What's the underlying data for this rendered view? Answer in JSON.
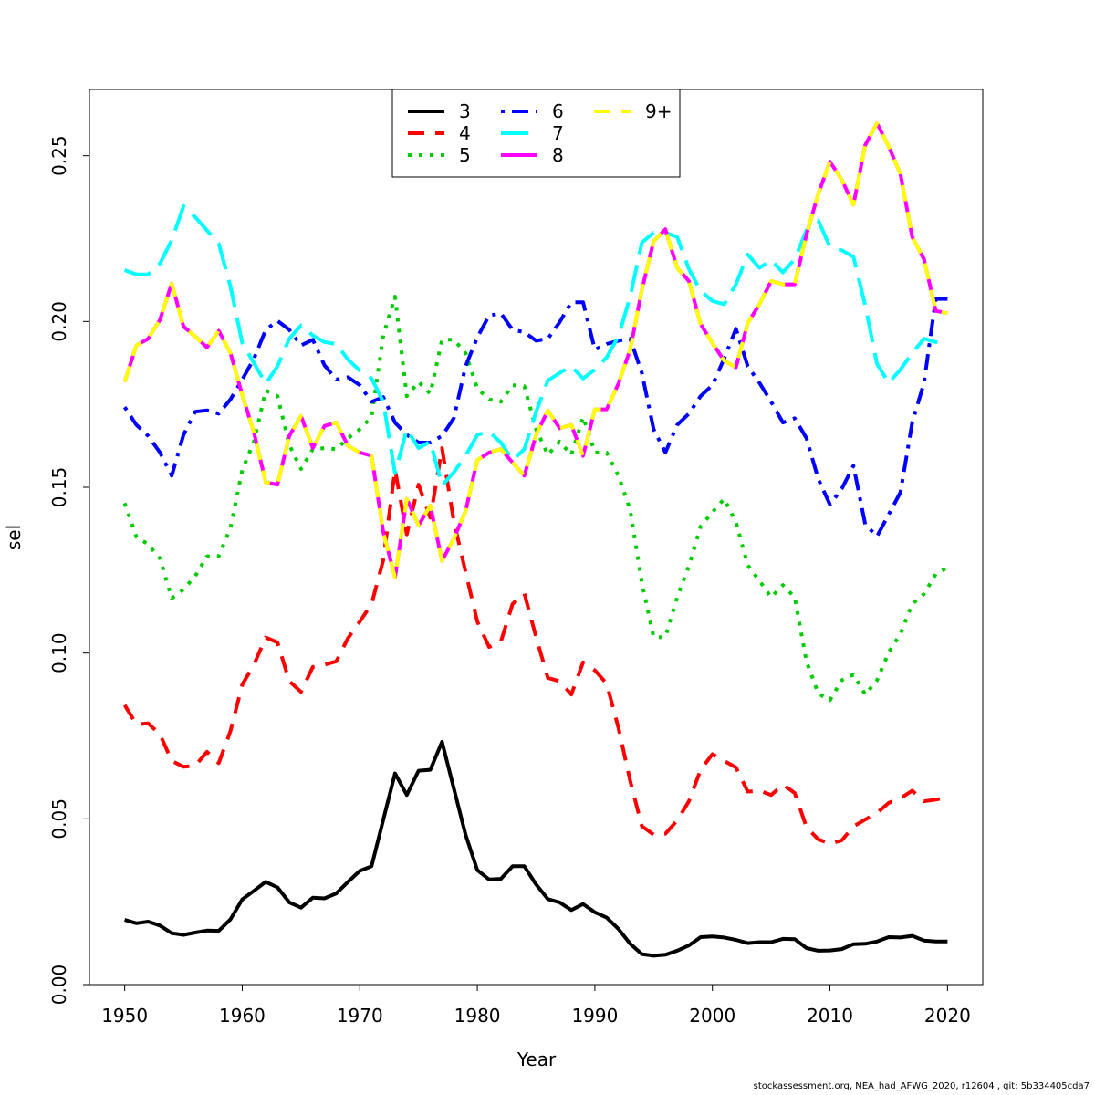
{
  "chart_data": {
    "type": "line",
    "title": "",
    "xlabel": "Year",
    "ylabel": "sel",
    "xlim": [
      1947,
      2023
    ],
    "ylim": [
      0,
      0.27
    ],
    "x_ticks": [
      1950,
      1960,
      1970,
      1980,
      1990,
      2000,
      2010,
      2020
    ],
    "x_tick_labels": [
      "1950",
      "1960",
      "1970",
      "1980",
      "1990",
      "2000",
      "2010",
      "2020"
    ],
    "y_ticks": [
      0.0,
      0.05,
      0.1,
      0.15,
      0.2,
      0.25
    ],
    "y_tick_labels": [
      "0.00",
      "0.05",
      "0.10",
      "0.15",
      "0.20",
      "0.25"
    ],
    "grid": false,
    "legend_position": "top-center",
    "x": [
      1950,
      1951,
      1952,
      1953,
      1954,
      1955,
      1956,
      1957,
      1958,
      1959,
      1960,
      1961,
      1962,
      1963,
      1964,
      1965,
      1966,
      1967,
      1968,
      1969,
      1970,
      1971,
      1972,
      1973,
      1974,
      1975,
      1976,
      1977,
      1978,
      1979,
      1980,
      1981,
      1982,
      1983,
      1984,
      1985,
      1986,
      1987,
      1988,
      1989,
      1990,
      1991,
      1992,
      1993,
      1994,
      1995,
      1996,
      1997,
      1998,
      1999,
      2000,
      2001,
      2002,
      2003,
      2004,
      2005,
      2006,
      2007,
      2008,
      2009,
      2010,
      2011,
      2012,
      2013,
      2014,
      2015,
      2016,
      2017,
      2018,
      2019,
      2020
    ],
    "series": [
      {
        "name": "3",
        "color": "#000000",
        "dash": "solid",
        "values": [
          0.0195,
          0.0185,
          0.019,
          0.0178,
          0.0155,
          0.015,
          0.0157,
          0.0163,
          0.0162,
          0.0197,
          0.0257,
          0.0283,
          0.031,
          0.0293,
          0.0248,
          0.0232,
          0.0262,
          0.026,
          0.0275,
          0.031,
          0.0343,
          0.0357,
          0.0497,
          0.0637,
          0.0572,
          0.0645,
          0.0648,
          0.0732,
          0.0592,
          0.0452,
          0.0345,
          0.0317,
          0.0319,
          0.0357,
          0.0357,
          0.0302,
          0.0258,
          0.0248,
          0.0225,
          0.0243,
          0.0218,
          0.0202,
          0.0168,
          0.0123,
          0.0092,
          0.0087,
          0.009,
          0.0102,
          0.0118,
          0.0143,
          0.0145,
          0.0142,
          0.0135,
          0.0125,
          0.0128,
          0.0128,
          0.0138,
          0.0137,
          0.011,
          0.0102,
          0.0103,
          0.0107,
          0.0122,
          0.0123,
          0.013,
          0.0143,
          0.0142,
          0.0147,
          0.0133,
          0.013,
          0.013
        ]
      },
      {
        "name": "4",
        "color": "#ff0000",
        "dash": "dashed",
        "values": [
          0.0843,
          0.0785,
          0.0788,
          0.0755,
          0.0675,
          0.0657,
          0.066,
          0.0702,
          0.0668,
          0.0765,
          0.0905,
          0.0965,
          0.1047,
          0.1032,
          0.0915,
          0.0883,
          0.0958,
          0.0965,
          0.0975,
          0.1045,
          0.1095,
          0.1148,
          0.128,
          0.1553,
          0.1358,
          0.1508,
          0.1408,
          0.1618,
          0.1398,
          0.1245,
          0.1095,
          0.1018,
          0.1035,
          0.1148,
          0.118,
          0.1048,
          0.0925,
          0.0915,
          0.0875,
          0.0972,
          0.0948,
          0.0908,
          0.0775,
          0.0615,
          0.0478,
          0.0452,
          0.0455,
          0.0495,
          0.0553,
          0.0648,
          0.0695,
          0.0675,
          0.0655,
          0.0582,
          0.0585,
          0.0572,
          0.0603,
          0.0578,
          0.0475,
          0.0438,
          0.0425,
          0.0435,
          0.0477,
          0.0498,
          0.0518,
          0.0548,
          0.0562,
          0.0585,
          0.0553,
          0.0558,
          0.0565
        ]
      },
      {
        "name": "5",
        "color": "#00cd00",
        "dash": "dotted",
        "values": [
          0.1452,
          0.135,
          0.1328,
          0.1285,
          0.1165,
          0.1192,
          0.1232,
          0.1292,
          0.1292,
          0.1378,
          0.1552,
          0.1638,
          0.1792,
          0.1775,
          0.1628,
          0.1555,
          0.1615,
          0.1618,
          0.1615,
          0.1648,
          0.1675,
          0.1712,
          0.1958,
          0.2075,
          0.1775,
          0.1818,
          0.1782,
          0.1945,
          0.1945,
          0.1905,
          0.1798,
          0.1765,
          0.1758,
          0.1808,
          0.1805,
          0.1675,
          0.1598,
          0.1638,
          0.1598,
          0.1712,
          0.1605,
          0.1605,
          0.1535,
          0.1432,
          0.1212,
          0.1048,
          0.1048,
          0.1168,
          0.1262,
          0.1382,
          0.1425,
          0.1465,
          0.1395,
          0.1265,
          0.1218,
          0.1168,
          0.1205,
          0.1168,
          0.0975,
          0.0878,
          0.0858,
          0.0918,
          0.0935,
          0.0875,
          0.0918,
          0.1002,
          0.1058,
          0.1148,
          0.1178,
          0.1238,
          0.1258
        ]
      },
      {
        "name": "6",
        "color": "#0000ff",
        "dash": "dotdash",
        "values": [
          0.1742,
          0.1688,
          0.1655,
          0.1605,
          0.1535,
          0.1658,
          0.1728,
          0.1732,
          0.1722,
          0.1765,
          0.1825,
          0.1888,
          0.1975,
          0.2002,
          0.1975,
          0.1928,
          0.1945,
          0.1868,
          0.1825,
          0.1832,
          0.1808,
          0.1758,
          0.1772,
          0.1695,
          0.1658,
          0.1635,
          0.1635,
          0.1655,
          0.1708,
          0.1865,
          0.1952,
          0.2018,
          0.2025,
          0.1975,
          0.1968,
          0.1942,
          0.1948,
          0.1998,
          0.2058,
          0.2058,
          0.1915,
          0.1932,
          0.1942,
          0.1948,
          0.1845,
          0.1675,
          0.1605,
          0.1688,
          0.1722,
          0.1775,
          0.1808,
          0.1888,
          0.1978,
          0.1865,
          0.1815,
          0.1758,
          0.1695,
          0.1708,
          0.1648,
          0.1525,
          0.1448,
          0.1495,
          0.1565,
          0.1388,
          0.1352,
          0.1418,
          0.1485,
          0.1695,
          0.1815,
          0.2068,
          0.2068
        ]
      },
      {
        "name": "7",
        "color": "#00ffff",
        "dash": "longdash",
        "values": [
          0.2155,
          0.2142,
          0.2142,
          0.2175,
          0.2245,
          0.2348,
          0.2315,
          0.2275,
          0.2235,
          0.2105,
          0.1935,
          0.1875,
          0.1812,
          0.1865,
          0.1948,
          0.1988,
          0.1958,
          0.1938,
          0.1932,
          0.1885,
          0.1852,
          0.1828,
          0.1758,
          0.1542,
          0.1675,
          0.1618,
          0.1638,
          0.1505,
          0.1545,
          0.1595,
          0.1658,
          0.1668,
          0.1635,
          0.1582,
          0.1615,
          0.1728,
          0.1822,
          0.1845,
          0.1865,
          0.1828,
          0.1855,
          0.1892,
          0.1955,
          0.2075,
          0.2238,
          0.2268,
          0.2268,
          0.2255,
          0.2158,
          0.2092,
          0.2062,
          0.2052,
          0.2112,
          0.2202,
          0.2162,
          0.2185,
          0.2148,
          0.2188,
          0.2275,
          0.2305,
          0.2225,
          0.2215,
          0.2195,
          0.2048,
          0.1872,
          0.1815,
          0.1855,
          0.1905,
          0.1948,
          0.1938,
          0.1938
        ]
      },
      {
        "name": "8",
        "color": "#ff00ff",
        "dash": "solid",
        "values": [
          0.1818,
          0.1928,
          0.1948,
          0.2005,
          0.2115,
          0.1985,
          0.1955,
          0.1922,
          0.1972,
          0.1905,
          0.1778,
          0.1665,
          0.1515,
          0.1508,
          0.1655,
          0.1715,
          0.1618,
          0.1685,
          0.1695,
          0.1625,
          0.1605,
          0.1595,
          0.1365,
          0.1228,
          0.1465,
          0.1385,
          0.1445,
          0.1278,
          0.1345,
          0.1428,
          0.1582,
          0.1605,
          0.1615,
          0.1575,
          0.1535,
          0.1658,
          0.1732,
          0.1678,
          0.1688,
          0.1595,
          0.1735,
          0.1735,
          0.1812,
          0.1915,
          0.2095,
          0.2242,
          0.2278,
          0.2162,
          0.2122,
          0.1992,
          0.1935,
          0.1882,
          0.1862,
          0.1995,
          0.2052,
          0.2122,
          0.2112,
          0.2112,
          0.2262,
          0.2385,
          0.2482,
          0.2428,
          0.2352,
          0.2532,
          0.2598,
          0.2528,
          0.2445,
          0.2255,
          0.2188,
          0.2032,
          0.2025
        ]
      },
      {
        "name": "9+",
        "color": "#ffff00",
        "dash": "dashed",
        "values": [
          0.1818,
          0.1928,
          0.1948,
          0.2005,
          0.2115,
          0.1985,
          0.1955,
          0.1922,
          0.1972,
          0.1905,
          0.1778,
          0.1665,
          0.1515,
          0.1508,
          0.1655,
          0.1715,
          0.1618,
          0.1685,
          0.1695,
          0.1625,
          0.1605,
          0.1595,
          0.1365,
          0.1228,
          0.1465,
          0.1385,
          0.1445,
          0.1278,
          0.1345,
          0.1428,
          0.1582,
          0.1605,
          0.1615,
          0.1575,
          0.1535,
          0.1658,
          0.1732,
          0.1678,
          0.1688,
          0.1595,
          0.1735,
          0.1735,
          0.1812,
          0.1915,
          0.2095,
          0.2242,
          0.2278,
          0.2162,
          0.2122,
          0.1992,
          0.1935,
          0.1882,
          0.1862,
          0.1995,
          0.2052,
          0.2122,
          0.2112,
          0.2112,
          0.2262,
          0.2385,
          0.2482,
          0.2428,
          0.2352,
          0.2532,
          0.2598,
          0.2528,
          0.2445,
          0.2255,
          0.2188,
          0.2032,
          0.2025
        ]
      }
    ]
  },
  "footer": {
    "note": "stockassessment.org, NEA_had_AFWG_2020, r12604 , git: 5b334405cda7"
  }
}
